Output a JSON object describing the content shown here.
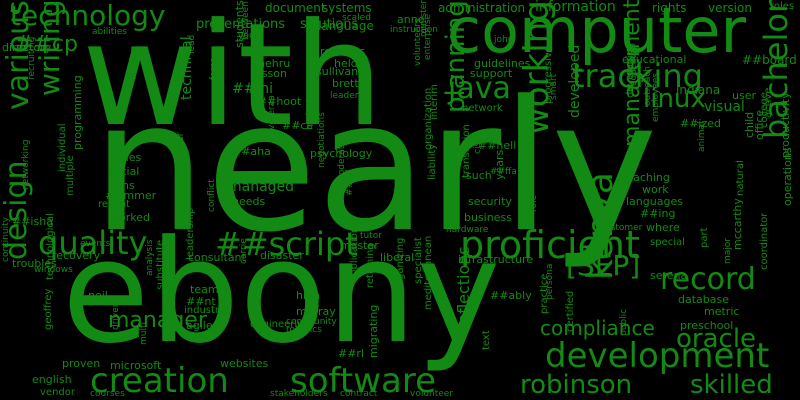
{
  "colors": {
    "background": "#000000",
    "word": "#138a13"
  },
  "words": [
    "nearly",
    "with",
    "ebony",
    "computer",
    "development",
    "creation",
    "software",
    "proficient",
    "kenya",
    "quality",
    "##script",
    "technology",
    "tracking",
    "writing",
    "java",
    "various",
    "bachelor",
    "working",
    "design",
    "oracle",
    "linux",
    "record",
    "robinson",
    "skilled",
    "[SEP]",
    "##cp",
    "management",
    "planning",
    "compliance",
    "manager",
    "information",
    "administration",
    "document",
    "systems",
    "rights",
    "version",
    "presentations",
    "solutions",
    "language",
    "##board",
    "educational",
    "indiana",
    "visual",
    "technical",
    "developed",
    "managed",
    "##mi",
    "##hoot",
    "##ce",
    "##aha",
    "psychology",
    "##nell",
    "security",
    "business",
    "teaching",
    "languages",
    "work",
    "customer",
    "where",
    "directory",
    "abilities",
    "youth",
    "nehru",
    "lesson",
    "remarks",
    "held",
    "brett",
    "sullivan",
    "guidelines",
    "support",
    "network",
    "jones",
    "social",
    "wins",
    "##mmer",
    "recent",
    "worked",
    "##isha",
    "needs",
    "consultant",
    "disaster",
    "troubles",
    "recovery",
    "neil",
    "team",
    "##nt",
    "industry",
    "agile",
    "high",
    "murray",
    "community",
    "robotics",
    "engineering",
    "websites",
    "microsoft",
    "proven",
    "english",
    "vendor",
    "master",
    "liberal",
    "infrastructure",
    "applications",
    "retaining",
    "organizing",
    "specialist",
    "reflections",
    "mediterranean",
    "migrating",
    "##rl",
    "years",
    "persona",
    "practice",
    "certified",
    "preschool",
    "database",
    "metric",
    "serena",
    "special",
    "part",
    "mccarthy",
    "child",
    "office",
    "college",
    "active",
    "roles",
    "user",
    "productivity",
    "operations",
    "natural",
    "anne",
    "scaled",
    "instruction",
    "volunteer",
    "contract",
    "stakeholders",
    "courses",
    "events",
    "windows",
    "technological",
    "geoffrey",
    "multiple",
    "programming",
    "individual",
    "substitute",
    "analysis",
    "leadership",
    "entrepreneur",
    "students",
    "between",
    "force",
    "lead",
    "reading",
    "recruiting",
    "networking",
    "continuity",
    "such",
    "##ized",
    "##ing",
    "##ably",
    "progressive",
    "smart",
    "developing",
    "educator",
    "outreach",
    "employees",
    "animal",
    "cisco",
    "translation",
    "organization",
    "interim",
    "liability",
    "enterprise",
    "volunteers",
    "leader",
    "moderate",
    "##ful",
    "budget",
    "veteran",
    "negotiations",
    "conflict",
    "carrie",
    "driven",
    "multi",
    "public",
    "text",
    "tutor",
    "hardware",
    "role",
    "major",
    "coordinator",
    "john",
    "minister",
    "##ffa",
    "reading"
  ]
}
